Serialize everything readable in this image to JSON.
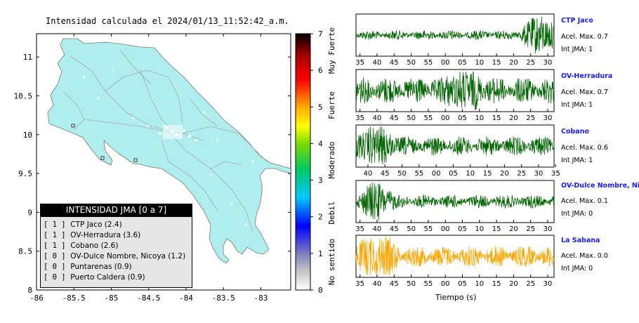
{
  "map": {
    "title": "Intensidad calculada el 2024/01/13_11:52:42_a.m.",
    "lon_ticks": [
      "-86",
      "-85.5",
      "-85",
      "-84.5",
      "-84",
      "-83.5",
      "-83"
    ],
    "lat_ticks": [
      "11",
      "10.5",
      "10",
      "9.5",
      "9",
      "8.5",
      "8"
    ],
    "lon_range": [
      -86,
      -82.6
    ],
    "lat_range": [
      8,
      11.3
    ]
  },
  "colorbar": {
    "ticks": [
      "0",
      "1",
      "2",
      "3",
      "4",
      "5",
      "6",
      "7"
    ],
    "range": [
      0,
      7
    ],
    "labels": [
      "No sentido",
      "Debil",
      "Moderado",
      "Fuerte",
      "Muy Fuerte"
    ]
  },
  "legend": {
    "title": "INTENSIDAD JMA [0 a 7]",
    "items": [
      {
        "level": "[ 1 ]",
        "label": "CTP Jaco (2.4)"
      },
      {
        "level": "[ 1 ]",
        "label": "OV-Herradura (3.6)"
      },
      {
        "level": "[ 1 ]",
        "label": "Cobano (2.6)"
      },
      {
        "level": "[ 0 ]",
        "label": "OV-Dulce Nombre, Nicoya (1.2)"
      },
      {
        "level": "[ 0 ]",
        "label": "Puntarenas (0.9)"
      },
      {
        "level": "[ 0 ]",
        "label": "Puerto Caldera (0.9)"
      }
    ]
  },
  "stations": [
    {
      "name": "CTP Jaco",
      "acel": "Acel. Max. 0.7",
      "int": "Int JMA: 1",
      "color": "#006400",
      "amplitude": 0.25,
      "burst_pos": 0.93,
      "burst_amp": 0.95,
      "ticks": [
        "35",
        "40",
        "45",
        "50",
        "55",
        "00",
        "05",
        "10",
        "15",
        "20",
        "25",
        "30"
      ],
      "tick_offset": 0.02
    },
    {
      "name": "OV-Herradura",
      "acel": "Acel. Max. 0.7",
      "int": "Int JMA: 1",
      "color": "#006400",
      "amplitude": 0.7,
      "burst_pos": 0.55,
      "burst_amp": 0.9,
      "ticks": [
        "35",
        "40",
        "45",
        "50",
        "55",
        "00",
        "05",
        "10",
        "15",
        "20",
        "25",
        "30"
      ],
      "tick_offset": 0.02
    },
    {
      "name": "Cobano",
      "acel": "Acel. Max. 0.6",
      "int": "Int JMA: 1",
      "color": "#006400",
      "amplitude": 0.5,
      "burst_pos": 0.1,
      "burst_amp": 0.95,
      "ticks": [
        "40",
        "45",
        "50",
        "55",
        "00",
        "05",
        "10",
        "15",
        "20",
        "25",
        "30",
        "35"
      ],
      "tick_offset": 0.06
    },
    {
      "name": "OV-Dulce Nombre, Nicoya",
      "acel": "Acel. Max. 0.1",
      "int": "Int JMA: 0",
      "color": "#006400",
      "amplitude": 0.35,
      "burst_pos": 0.1,
      "burst_amp": 0.85,
      "ticks": [
        "35",
        "40",
        "45",
        "50",
        "55",
        "00",
        "05",
        "10",
        "15",
        "20",
        "25",
        "30"
      ],
      "tick_offset": 0.02
    },
    {
      "name": "La Sabana",
      "acel": "Acel. Max. 0.0",
      "int": "Int JMA: 0",
      "color": "#ffa500",
      "amplitude": 0.55,
      "burst_pos": 0.11,
      "burst_amp": 0.95,
      "ticks": [
        "35",
        "40",
        "45",
        "50",
        "55",
        "00",
        "05",
        "10",
        "15",
        "20",
        "25",
        "30"
      ],
      "tick_offset": 0.02
    }
  ],
  "axis": {
    "xlabel": "Tiempo (s)"
  }
}
